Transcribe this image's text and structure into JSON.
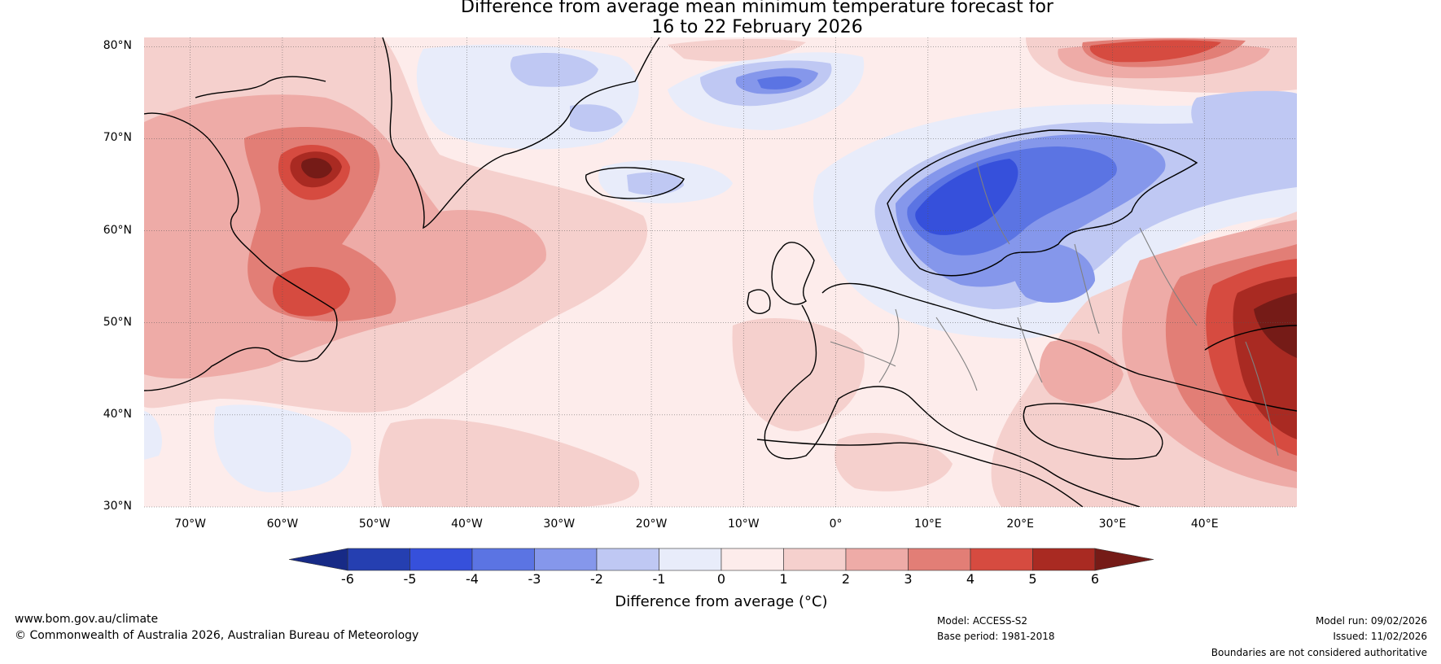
{
  "title": {
    "line1": "Difference from average mean minimum temperature forecast for",
    "line2": "16 to 22 February 2026"
  },
  "map": {
    "lat_labels": [
      "80°N",
      "70°N",
      "60°N",
      "50°N",
      "40°N",
      "30°N"
    ],
    "lat_values": [
      80,
      70,
      60,
      50,
      40,
      30
    ],
    "lon_labels": [
      "70°W",
      "60°W",
      "50°W",
      "40°W",
      "30°W",
      "20°W",
      "10°W",
      "0°",
      "10°E",
      "20°E",
      "30°E",
      "40°E"
    ],
    "lon_values": [
      -70,
      -60,
      -50,
      -40,
      -30,
      -20,
      -10,
      0,
      10,
      20,
      30,
      40
    ],
    "extent": {
      "lon_min": -75,
      "lon_max": 50,
      "lat_min": 30,
      "lat_max": 81
    },
    "ocean_color": "#fdeceb"
  },
  "colorbar": {
    "ticks": [
      "-6",
      "-5",
      "-4",
      "-3",
      "-2",
      "-1",
      "0",
      "1",
      "2",
      "3",
      "4",
      "5",
      "6"
    ],
    "colors": [
      "#253fb1",
      "#3650db",
      "#5b74e3",
      "#8597eb",
      "#bfc8f3",
      "#e8ecfa",
      "#fdeceb",
      "#f5d0cd",
      "#eeaba7",
      "#e27e76",
      "#d64b40",
      "#a92a22"
    ],
    "low_extend_color": "#172a86",
    "high_extend_color": "#751b17",
    "label": "Difference from average (°C)"
  },
  "footer": {
    "website": "www.bom.gov.au/climate",
    "copyright": "© Commonwealth of Australia 2026, Australian Bureau of Meteorology",
    "model": "Model: ACCESS-S2",
    "base_period": "Base period: 1981-2018",
    "model_run": "Model run: 09/02/2026",
    "issued": "Issued: 11/02/2026",
    "disclaimer": "Boundaries are not considered authoritative"
  }
}
